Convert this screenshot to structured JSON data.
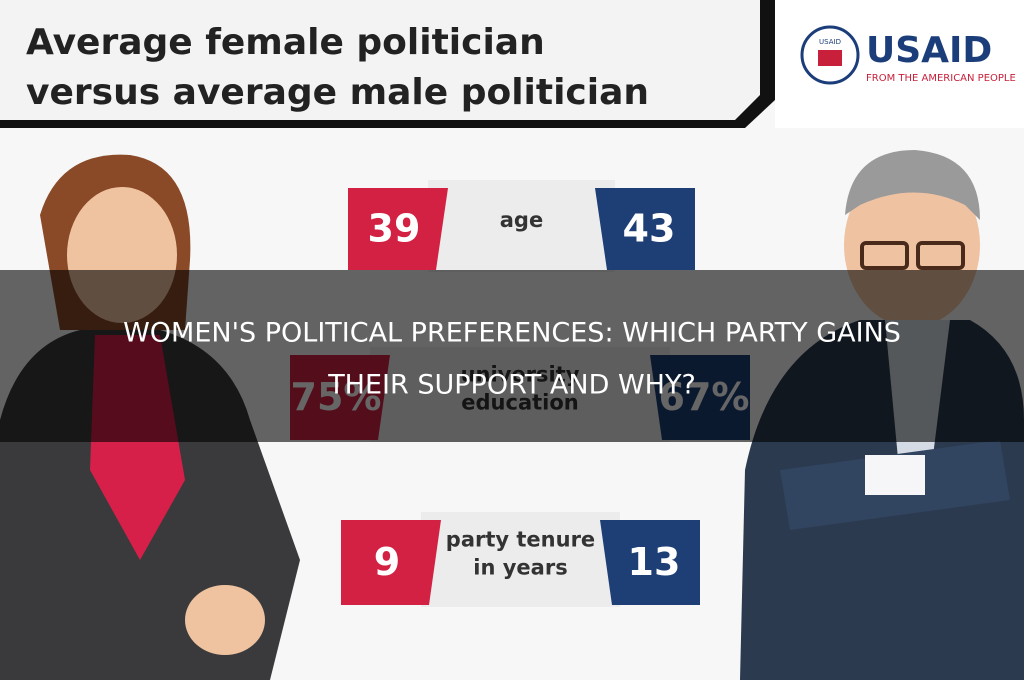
{
  "header": {
    "title_lines": [
      "Average female politician",
      "versus average male politician"
    ]
  },
  "logo": {
    "name": "USAID",
    "tagline": "FROM THE AMERICAN PEOPLE",
    "seal": "USAID"
  },
  "rows": [
    {
      "left": "39",
      "label_lines": [
        "age"
      ],
      "right": "43"
    },
    {
      "left": "75%",
      "label_lines": [
        "university",
        "education"
      ],
      "right": "67%"
    },
    {
      "left": "9",
      "label_lines": [
        "party tenure",
        "in years"
      ],
      "right": "13"
    }
  ],
  "overlay": {
    "title_lines": [
      "WOMEN'S POLITICAL PREFERENCES: WHICH PARTY GAINS",
      "THEIR SUPPORT AND WHY?"
    ]
  }
}
